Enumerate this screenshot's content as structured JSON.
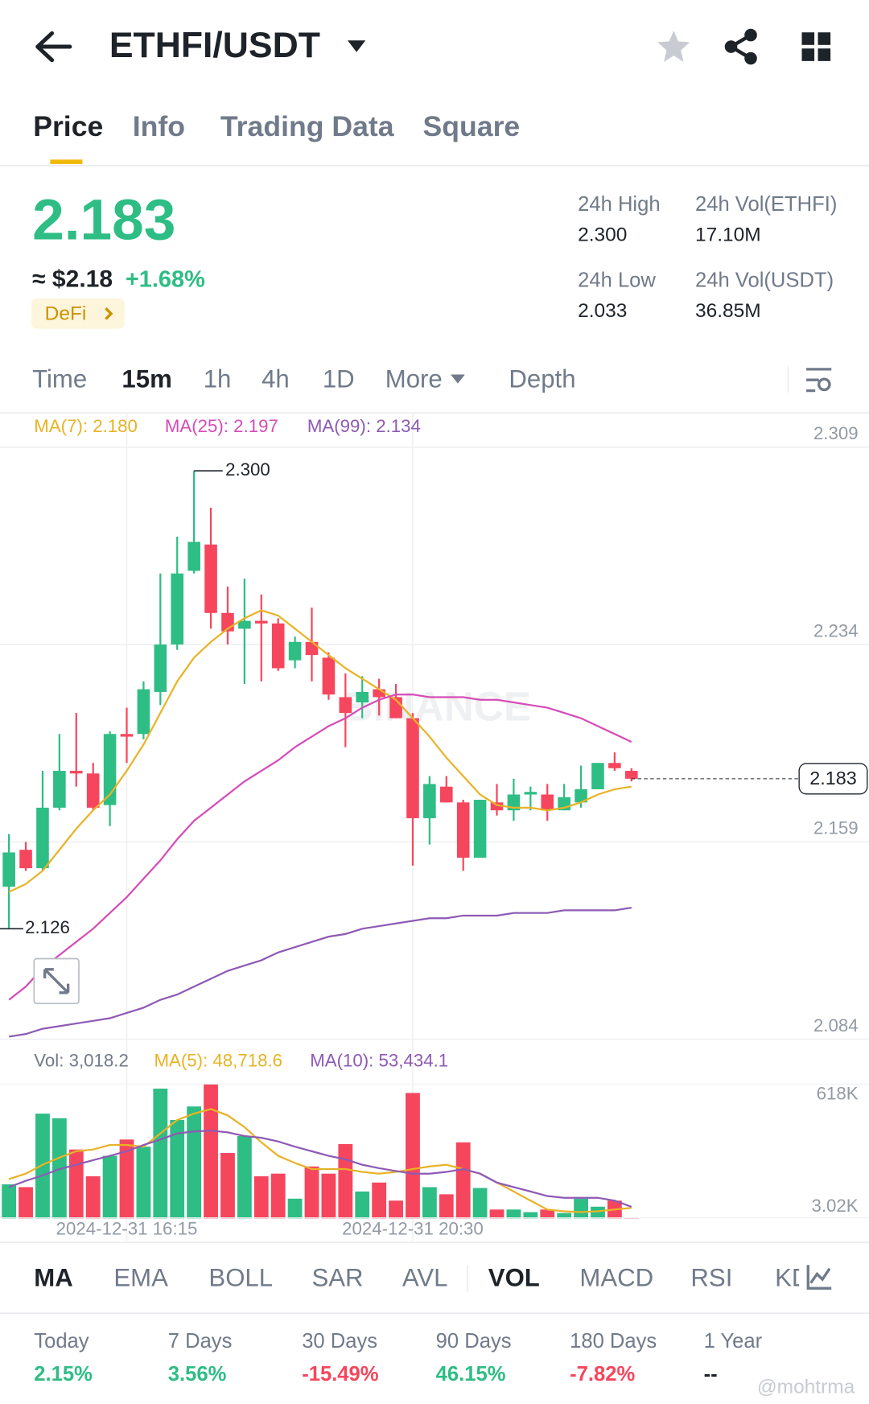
{
  "header": {
    "title": "ETHFI/USDT"
  },
  "tabs": [
    "Price",
    "Info",
    "Trading Data",
    "Square"
  ],
  "ticker": {
    "price": "2.183",
    "usd": "≈ $2.18",
    "change": "+1.68%",
    "tag": "DeFi",
    "stats": [
      {
        "label": "24h High",
        "value": "2.300"
      },
      {
        "label": "24h Vol(ETHFI)",
        "value": "17.10M"
      },
      {
        "label": "24h Low",
        "value": "2.033"
      },
      {
        "label": "24h Vol(USDT)",
        "value": "36.85M"
      }
    ]
  },
  "intervals": [
    "Time",
    "15m",
    "1h",
    "4h",
    "1D",
    "More",
    "Depth"
  ],
  "chart_data": [
    {
      "type": "candlestick",
      "up_color": "#2ebd85",
      "down_color": "#f6465d",
      "open": [
        2.142,
        2.156,
        2.149,
        2.172,
        2.186,
        2.185,
        2.173,
        2.2,
        2.2,
        2.216,
        2.234,
        2.262,
        2.272,
        2.246,
        2.24,
        2.243,
        2.242,
        2.228,
        2.235,
        2.229,
        2.214,
        2.212,
        2.217,
        2.214,
        2.206,
        2.168,
        2.18,
        2.174,
        2.153,
        2.174,
        2.171,
        2.177,
        2.177,
        2.171,
        2.174,
        2.179,
        2.189,
        2.186
      ],
      "high": [
        2.162,
        2.159,
        2.186,
        2.2,
        2.208,
        2.189,
        2.201,
        2.21,
        2.22,
        2.261,
        2.275,
        2.3,
        2.286,
        2.256,
        2.259,
        2.253,
        2.244,
        2.237,
        2.248,
        2.231,
        2.223,
        2.222,
        2.221,
        2.219,
        2.208,
        2.184,
        2.184,
        2.175,
        2.175,
        2.181,
        2.183,
        2.18,
        2.181,
        2.181,
        2.188,
        2.189,
        2.193,
        2.187
      ],
      "low": [
        2.126,
        2.148,
        2.148,
        2.171,
        2.18,
        2.171,
        2.165,
        2.189,
        2.198,
        2.211,
        2.232,
        2.261,
        2.24,
        2.234,
        2.219,
        2.22,
        2.224,
        2.225,
        2.22,
        2.213,
        2.195,
        2.206,
        2.207,
        2.206,
        2.15,
        2.158,
        2.174,
        2.148,
        2.153,
        2.169,
        2.167,
        2.171,
        2.167,
        2.171,
        2.172,
        2.179,
        2.186,
        2.182
      ],
      "close": [
        2.155,
        2.149,
        2.172,
        2.186,
        2.185,
        2.172,
        2.2,
        2.199,
        2.217,
        2.234,
        2.261,
        2.273,
        2.246,
        2.239,
        2.243,
        2.242,
        2.225,
        2.235,
        2.23,
        2.215,
        2.208,
        2.216,
        2.214,
        2.206,
        2.168,
        2.181,
        2.174,
        2.153,
        2.175,
        2.171,
        2.177,
        2.178,
        2.171,
        2.176,
        2.179,
        2.189,
        2.187,
        2.183
      ],
      "series": [
        {
          "name": "MA(7): 2.180",
          "color": "#e8b325",
          "values": [
            2.14,
            2.143,
            2.148,
            2.156,
            2.164,
            2.171,
            2.177,
            2.186,
            2.196,
            2.208,
            2.22,
            2.229,
            2.235,
            2.24,
            2.244,
            2.247,
            2.245,
            2.24,
            2.235,
            2.23,
            2.225,
            2.221,
            2.217,
            2.213,
            2.206,
            2.199,
            2.191,
            2.184,
            2.177,
            2.173,
            2.172,
            2.172,
            2.171,
            2.172,
            2.174,
            2.177,
            2.179,
            2.18
          ]
        },
        {
          "name": "MA(25): 2.197",
          "color": "#d64bb8",
          "values": [
            2.099,
            2.104,
            2.111,
            2.116,
            2.121,
            2.126,
            2.132,
            2.138,
            2.145,
            2.152,
            2.16,
            2.167,
            2.172,
            2.177,
            2.182,
            2.186,
            2.19,
            2.195,
            2.199,
            2.203,
            2.206,
            2.21,
            2.213,
            2.215,
            2.215,
            2.214,
            2.214,
            2.214,
            2.213,
            2.213,
            2.212,
            2.211,
            2.21,
            2.208,
            2.206,
            2.203,
            2.2,
            2.197
          ]
        },
        {
          "name": "MA(99): 2.134",
          "color": "#8e5ab5",
          "values": [
            2.085,
            2.086,
            2.088,
            2.089,
            2.09,
            2.091,
            2.092,
            2.094,
            2.096,
            2.099,
            2.101,
            2.104,
            2.107,
            2.11,
            2.112,
            2.114,
            2.117,
            2.119,
            2.121,
            2.123,
            2.124,
            2.126,
            2.127,
            2.128,
            2.129,
            2.13,
            2.13,
            2.131,
            2.131,
            2.131,
            2.132,
            2.132,
            2.132,
            2.133,
            2.133,
            2.133,
            2.133,
            2.134
          ]
        }
      ],
      "ylim": [
        2.084,
        2.309
      ],
      "yticks": [
        2.309,
        2.234,
        2.159,
        2.084
      ],
      "grid": true,
      "max_label": "2.300",
      "min_label": "2.126",
      "current_price": 2.183,
      "watermark": "BINANCE"
    },
    {
      "type": "bar",
      "title": "Vol: 3,018.2",
      "categories": [
        null,
        null,
        null,
        null,
        null,
        null,
        null,
        "2024-12-31 16:15",
        null,
        null,
        null,
        null,
        null,
        null,
        null,
        null,
        null,
        null,
        null,
        null,
        null,
        null,
        null,
        null,
        "2024-12-31 20:30",
        null,
        null,
        null,
        null,
        null,
        null,
        null,
        null,
        null,
        null,
        null,
        null,
        null
      ],
      "values": [
        157000,
        144000,
        482000,
        461000,
        317000,
        194000,
        288000,
        363000,
        330000,
        597000,
        453000,
        515000,
        618000,
        301000,
        379000,
        194000,
        206000,
        91000,
        239000,
        206000,
        342000,
        124000,
        165000,
        82000,
        577000,
        144000,
        111000,
        350000,
        140000,
        41000,
        41000,
        29000,
        41000,
        25000,
        91000,
        54000,
        82000,
        3018.2
      ],
      "series": [
        {
          "name": "MA(5): 48,718.6",
          "color": "#e8b325",
          "values": [
            181000,
            206000,
            247000,
            280000,
            309000,
            317000,
            338000,
            338000,
            330000,
            391000,
            453000,
            482000,
            503000,
            474000,
            420000,
            350000,
            288000,
            255000,
            227000,
            227000,
            227000,
            214000,
            206000,
            214000,
            227000,
            239000,
            247000,
            227000,
            206000,
            165000,
            124000,
            82000,
            41000,
            33000,
            29000,
            33000,
            41000,
            48718.6
          ]
        },
        {
          "name": "MA(10): 53,434.1",
          "color": "#8e5ab5",
          "values": [
            144000,
            173000,
            198000,
            227000,
            247000,
            268000,
            288000,
            309000,
            338000,
            363000,
            391000,
            400000,
            404000,
            396000,
            379000,
            371000,
            354000,
            330000,
            309000,
            288000,
            272000,
            247000,
            231000,
            218000,
            206000,
            206000,
            214000,
            227000,
            206000,
            165000,
            144000,
            124000,
            103000,
            95000,
            95000,
            95000,
            82000,
            53434.1
          ]
        }
      ],
      "ylim": [
        0,
        618000
      ],
      "yticks": [
        {
          "value": 618000,
          "label": "618K"
        },
        {
          "value": 3020,
          "label": "3.02K"
        }
      ]
    }
  ],
  "indicators": [
    "MA",
    "EMA",
    "BOLL",
    "SAR",
    "AVL",
    "VOL",
    "MACD",
    "RSI",
    "KDJ"
  ],
  "performance": [
    {
      "label": "Today",
      "value": "2.15%",
      "color": "#2ebd85"
    },
    {
      "label": "7 Days",
      "value": "3.56%",
      "color": "#2ebd85"
    },
    {
      "label": "30 Days",
      "value": "-15.49%",
      "color": "#f6465d"
    },
    {
      "label": "90 Days",
      "value": "46.15%",
      "color": "#2ebd85"
    },
    {
      "label": "180 Days",
      "value": "-7.82%",
      "color": "#f6465d"
    },
    {
      "label": "1 Year",
      "value": "--",
      "color": "#1e2329"
    }
  ],
  "watermark": "@mohtrma"
}
